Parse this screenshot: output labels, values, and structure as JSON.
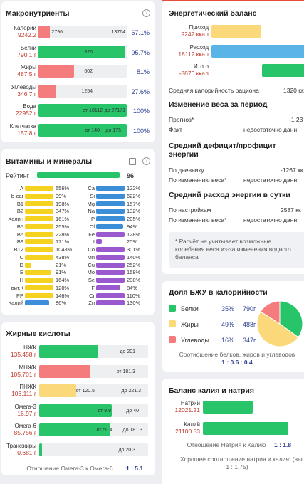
{
  "macronutrients": {
    "title": "Макронутриенты",
    "help": "?",
    "rows": [
      {
        "name": "Калории",
        "amount": "9242.2",
        "labels": [
          "2796",
          "13764"
        ],
        "percent": "67.1%",
        "color": "#f47c7c"
      },
      {
        "name": "Белки",
        "amount": "790.1 г",
        "labels": [
          "826"
        ],
        "percent": "95.7%",
        "color": "#27c46a"
      },
      {
        "name": "Жиры",
        "amount": "487.5 г",
        "labels": [
          "602"
        ],
        "percent": "81%",
        "color": "#f47c7c"
      },
      {
        "name": "Углеводы",
        "amount": "346.7 г",
        "labels": [
          "1254"
        ],
        "percent": "27.6%",
        "color": "#f47c7c"
      },
      {
        "name": "Вода",
        "amount": "22952 г",
        "labels": [
          "от 18112",
          "до 27171"
        ],
        "percent": "100%",
        "color": "#27c46a"
      },
      {
        "name": "Клетчатка",
        "amount": "157.8 г",
        "labels": [
          "от 140",
          "до 175"
        ],
        "percent": "100%",
        "color": "#27c46a"
      }
    ]
  },
  "vitamins": {
    "title": "Витамины и минералы",
    "help": "?",
    "rating_label": "Рейтинг",
    "rating": "96",
    "rating_color": "#27c46a",
    "left": [
      {
        "name": "A",
        "value": "556%",
        "color": "#f5d21f"
      },
      {
        "name": "b-car",
        "value": "99%",
        "color": "#f5d21f"
      },
      {
        "name": "B1",
        "value": "198%",
        "color": "#f5d21f"
      },
      {
        "name": "B2",
        "value": "347%",
        "color": "#f5d21f"
      },
      {
        "name": "Холин",
        "value": "161%",
        "color": "#f5d21f"
      },
      {
        "name": "B5",
        "value": "255%",
        "color": "#f5d21f"
      },
      {
        "name": "B6",
        "value": "228%",
        "color": "#f5d21f"
      },
      {
        "name": "B9",
        "value": "171%",
        "color": "#f5d21f"
      },
      {
        "name": "B12",
        "value": "1048%",
        "color": "#f5d21f"
      },
      {
        "name": "C",
        "value": "438%",
        "color": "#f5d21f"
      },
      {
        "name": "D",
        "value": "21%",
        "color": "#f5d21f"
      },
      {
        "name": "E",
        "value": "91%",
        "color": "#f5d21f"
      },
      {
        "name": "H",
        "value": "164%",
        "color": "#f5d21f"
      },
      {
        "name": "вит.К",
        "value": "120%",
        "color": "#f5d21f"
      },
      {
        "name": "PP",
        "value": "146%",
        "color": "#f5d21f"
      },
      {
        "name": "Калий",
        "value": "86%",
        "color": "#3b8fd9"
      }
    ],
    "right": [
      {
        "name": "Ca",
        "value": "122%",
        "color": "#3b8fd9"
      },
      {
        "name": "Si",
        "value": "622%",
        "color": "#3b8fd9"
      },
      {
        "name": "Mg",
        "value": "157%",
        "color": "#3b8fd9"
      },
      {
        "name": "Na",
        "value": "132%",
        "color": "#3b8fd9"
      },
      {
        "name": "P",
        "value": "205%",
        "color": "#3b8fd9"
      },
      {
        "name": "Cl",
        "value": "94%",
        "color": "#3b8fd9"
      },
      {
        "name": "Fe",
        "value": "128%",
        "color": "#9b59d0"
      },
      {
        "name": "I",
        "value": "20%",
        "color": "#9b59d0"
      },
      {
        "name": "Co",
        "value": "301%",
        "color": "#9b59d0"
      },
      {
        "name": "Mn",
        "value": "140%",
        "color": "#9b59d0"
      },
      {
        "name": "Cu",
        "value": "252%",
        "color": "#9b59d0"
      },
      {
        "name": "Mo",
        "value": "158%",
        "color": "#9b59d0"
      },
      {
        "name": "Se",
        "value": "208%",
        "color": "#9b59d0"
      },
      {
        "name": "F",
        "value": "84%",
        "color": "#9b59d0"
      },
      {
        "name": "Cr",
        "value": "110%",
        "color": "#9b59d0"
      },
      {
        "name": "Zn",
        "value": "130%",
        "color": "#9b59d0"
      }
    ]
  },
  "fatty_acids": {
    "title": "Жирные кислоты",
    "rows": [
      {
        "name": "НЖК",
        "amount": "135.458 г",
        "labels": [
          "до 201"
        ],
        "color": "#27c46a"
      },
      {
        "name": "МНЖК",
        "amount": "105.701 г",
        "labels": [
          "от 181.3"
        ],
        "color": "#f47c7c"
      },
      {
        "name": "ПНЖК",
        "amount": "106.111 г",
        "labels": [
          "от 120.5",
          "до 221.3"
        ],
        "color": "#fbd97a"
      },
      {
        "name": "Омега-3",
        "amount": "16.97 г",
        "labels": [
          "от 9.8",
          "до 40"
        ],
        "color": "#27c46a"
      },
      {
        "name": "Омега-6",
        "amount": "85.756 г",
        "labels": [
          "от 50.4",
          "до 181.3"
        ],
        "color": "#27c46a"
      },
      {
        "name": "Трансжиры",
        "amount": "0.681 г",
        "labels": [
          "до 20.3"
        ],
        "color": "#27c46a"
      }
    ],
    "ratio_label": "Отношение Омега-3 к Омега-6",
    "ratio": "1 : 5.1"
  },
  "energy": {
    "title": "Энергетический баланс",
    "bars": [
      {
        "name": "Приход",
        "amount": "9242 ккал",
        "color": "#fbd97a"
      },
      {
        "name": "Расход",
        "amount": "18112 ккал",
        "color": "#5ab4e6"
      },
      {
        "name": "Итого",
        "amount": "-8870 ккал",
        "color": "#27c46a"
      }
    ],
    "avg_label": "Средняя калорийность рациона",
    "avg_value": "1320 кк",
    "sections": [
      {
        "heading": "Изменение веса за период",
        "rows": [
          [
            "Прогноз*",
            "-1.23"
          ],
          [
            "Факт",
            "недостаточно данн"
          ]
        ]
      },
      {
        "heading": "Средний дефицит/профицит энергии",
        "rows": [
          [
            "По дневнику",
            "-1267 кк"
          ],
          [
            "По изменению веса*",
            "недостаточно данн"
          ]
        ]
      },
      {
        "heading": "Средний расход энергии в сутки",
        "rows": [
          [
            "По настройкам",
            "2587 кк"
          ],
          [
            "По изменению веса*",
            "недостаточно данн"
          ]
        ]
      }
    ],
    "note": "* Расчёт не учитывает возможные колебания веса из-за изменения водного баланса"
  },
  "bju": {
    "title": "Доля БЖУ в калорийности",
    "names": [
      "Белки",
      "Жиры",
      "Углеводы"
    ],
    "values": [
      35,
      49,
      16
    ],
    "value_labels": [
      "35%",
      "49%",
      "16%"
    ],
    "grams": [
      "790г",
      "488г",
      "347г"
    ],
    "colors": [
      "#27c46a",
      "#fbd97a",
      "#f47c7c"
    ],
    "ratio_label": "Соотношение белков, жиров и углеводов",
    "ratio": "1 : 0.6 : 0.4"
  },
  "potassium": {
    "title": "Баланс калия и натрия",
    "bars": [
      {
        "name": "Натрий",
        "amount": "12021.21",
        "color": "#27c46a"
      },
      {
        "name": "Калий",
        "amount": "21100.53",
        "color": "#27c46a"
      }
    ],
    "ratio_label": "Отношение Натрия к Калию",
    "ratio": "1 : 1.8",
    "verdict": "Хорошее соотношение натрия и калия! (выш",
    "verdict_tail": "1 : 1,75)"
  }
}
